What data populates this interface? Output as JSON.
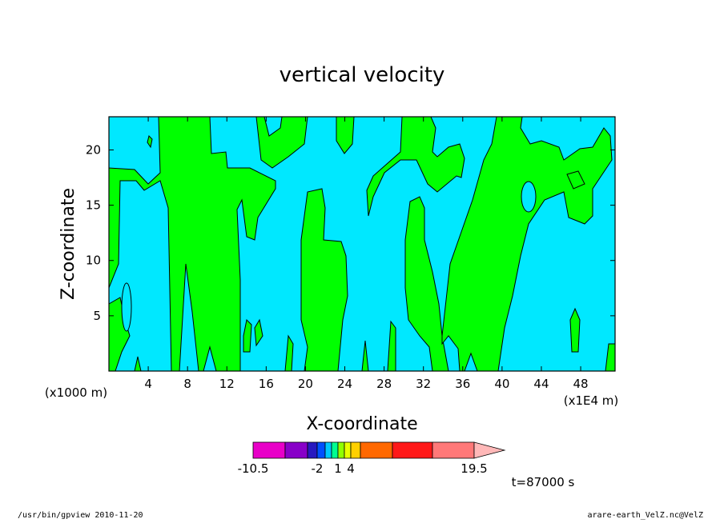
{
  "chart_data": {
    "type": "heatmap",
    "title": "vertical velocity",
    "xlabel": "X-coordinate",
    "ylabel": "Z-coordinate",
    "x_unit_left": "(x1000 m)",
    "x_unit_right": "(x1E4 m)",
    "xlim": [
      0,
      51.5
    ],
    "ylim": [
      0,
      23
    ],
    "x_ticks": [
      4,
      8,
      12,
      16,
      20,
      24,
      28,
      32,
      36,
      40,
      44,
      48
    ],
    "y_ticks": [
      5,
      10,
      15,
      20
    ],
    "field_colors": {
      "positive": "#00ff00",
      "negative": "#00e8ff",
      "contour": "#000000"
    },
    "colorbar": {
      "bins": [
        {
          "color": "#e800c8"
        },
        {
          "color": "#8800c8"
        },
        {
          "color": "#2818c0"
        },
        {
          "color": "#0050ff"
        },
        {
          "color": "#00c8ff"
        },
        {
          "color": "#00ff90"
        },
        {
          "color": "#90ff00"
        },
        {
          "color": "#e8ff00"
        },
        {
          "color": "#ffd000"
        },
        {
          "color": "#ff6800"
        },
        {
          "color": "#ff1818"
        },
        {
          "color": "#ff7878"
        }
      ],
      "extend_color": "#ffb8b8",
      "tick_labels": [
        "-10.5",
        "-2",
        "1",
        "4",
        "19.5"
      ]
    },
    "time_label": "t=87000 s"
  },
  "footer": {
    "left": "/usr/bin/gpview   2010-11-20",
    "right": "arare-earth_VelZ.nc@VelZ"
  }
}
